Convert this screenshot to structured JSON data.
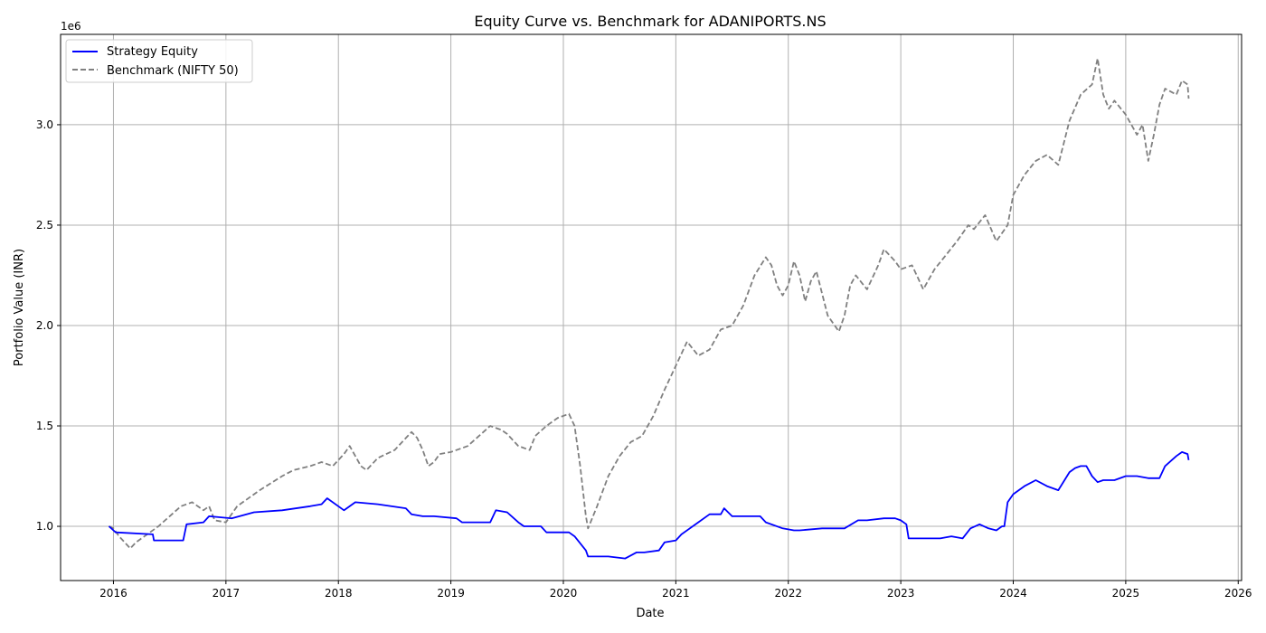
{
  "chart_data": {
    "type": "line",
    "title": "Equity Curve vs. Benchmark for ADANIPORTS.NS",
    "xlabel": "Date",
    "ylabel": "Portfolio Value (INR)",
    "y_offset_label": "1e6",
    "xlim": [
      2015.53,
      2026.03
    ],
    "ylim": [
      0.73,
      3.45
    ],
    "x_ticks": [
      2016,
      2017,
      2018,
      2019,
      2020,
      2021,
      2022,
      2023,
      2024,
      2025,
      2026
    ],
    "x_tick_labels": [
      "2016",
      "2017",
      "2018",
      "2019",
      "2020",
      "2021",
      "2022",
      "2023",
      "2024",
      "2025",
      "2026"
    ],
    "y_ticks": [
      1.0,
      1.5,
      2.0,
      2.5,
      3.0
    ],
    "y_tick_labels": [
      "1.0",
      "1.5",
      "2.0",
      "2.5",
      "3.0"
    ],
    "grid": true,
    "legend_position": "top-left",
    "series": [
      {
        "name": "Strategy Equity",
        "color": "#0000ff",
        "style": "solid",
        "x": [
          2015.96,
          2016.0,
          2016.02,
          2016.35,
          2016.36,
          2016.62,
          2016.65,
          2016.8,
          2016.85,
          2017.05,
          2017.25,
          2017.5,
          2017.75,
          2017.85,
          2017.9,
          2018.05,
          2018.15,
          2018.35,
          2018.6,
          2018.65,
          2018.75,
          2018.85,
          2019.05,
          2019.1,
          2019.35,
          2019.4,
          2019.5,
          2019.6,
          2019.65,
          2019.8,
          2019.85,
          2020.05,
          2020.1,
          2020.2,
          2020.22,
          2020.4,
          2020.55,
          2020.65,
          2020.72,
          2020.85,
          2020.9,
          2021.0,
          2021.05,
          2021.2,
          2021.3,
          2021.4,
          2021.43,
          2021.5,
          2021.75,
          2021.8,
          2021.95,
          2022.05,
          2022.1,
          2022.3,
          2022.5,
          2022.62,
          2022.7,
          2022.85,
          2022.95,
          2023.0,
          2023.05,
          2023.07,
          2023.35,
          2023.45,
          2023.55,
          2023.62,
          2023.7,
          2023.78,
          2023.85,
          2023.9,
          2023.92,
          2023.95,
          2024.0,
          2024.1,
          2024.2,
          2024.3,
          2024.4,
          2024.5,
          2024.55,
          2024.6,
          2024.65,
          2024.7,
          2024.75,
          2024.8,
          2024.9,
          2025.0,
          2025.1,
          2025.2,
          2025.3,
          2025.35,
          2025.45,
          2025.5,
          2025.55,
          2025.56
        ],
        "values": [
          1.0,
          0.98,
          0.97,
          0.96,
          0.93,
          0.93,
          1.01,
          1.02,
          1.05,
          1.04,
          1.07,
          1.08,
          1.1,
          1.11,
          1.14,
          1.08,
          1.12,
          1.11,
          1.09,
          1.06,
          1.05,
          1.05,
          1.04,
          1.02,
          1.02,
          1.08,
          1.07,
          1.02,
          1.0,
          1.0,
          0.97,
          0.97,
          0.95,
          0.88,
          0.85,
          0.85,
          0.84,
          0.87,
          0.87,
          0.88,
          0.92,
          0.93,
          0.96,
          1.02,
          1.06,
          1.06,
          1.09,
          1.05,
          1.05,
          1.02,
          0.99,
          0.98,
          0.98,
          0.99,
          0.99,
          1.03,
          1.03,
          1.04,
          1.04,
          1.03,
          1.01,
          0.94,
          0.94,
          0.95,
          0.94,
          0.99,
          1.01,
          0.99,
          0.98,
          1.0,
          1.0,
          1.12,
          1.16,
          1.2,
          1.23,
          1.2,
          1.18,
          1.27,
          1.29,
          1.3,
          1.3,
          1.25,
          1.22,
          1.23,
          1.23,
          1.25,
          1.25,
          1.24,
          1.24,
          1.3,
          1.35,
          1.37,
          1.36,
          1.33
        ]
      },
      {
        "name": "Benchmark (NIFTY 50)",
        "color": "#808080",
        "style": "dashed",
        "x": [
          2015.96,
          2016.0,
          2016.05,
          2016.1,
          2016.15,
          2016.2,
          2016.3,
          2016.4,
          2016.5,
          2016.6,
          2016.7,
          2016.8,
          2016.85,
          2016.9,
          2017.0,
          2017.1,
          2017.3,
          2017.5,
          2017.6,
          2017.75,
          2017.85,
          2017.95,
          2018.05,
          2018.1,
          2018.2,
          2018.25,
          2018.35,
          2018.5,
          2018.65,
          2018.7,
          2018.75,
          2018.8,
          2018.85,
          2018.9,
          2019.0,
          2019.15,
          2019.25,
          2019.35,
          2019.45,
          2019.5,
          2019.6,
          2019.7,
          2019.75,
          2019.85,
          2019.95,
          2020.05,
          2020.1,
          2020.15,
          2020.2,
          2020.22,
          2020.3,
          2020.4,
          2020.5,
          2020.6,
          2020.7,
          2020.8,
          2020.9,
          2021.0,
          2021.1,
          2021.2,
          2021.3,
          2021.4,
          2021.5,
          2021.6,
          2021.7,
          2021.8,
          2021.85,
          2021.9,
          2021.95,
          2022.0,
          2022.05,
          2022.1,
          2022.15,
          2022.2,
          2022.25,
          2022.35,
          2022.45,
          2022.5,
          2022.55,
          2022.6,
          2022.7,
          2022.8,
          2022.85,
          2022.95,
          2023.0,
          2023.1,
          2023.2,
          2023.3,
          2023.4,
          2023.5,
          2023.6,
          2023.65,
          2023.75,
          2023.85,
          2023.95,
          2024.0,
          2024.1,
          2024.2,
          2024.3,
          2024.4,
          2024.5,
          2024.6,
          2024.7,
          2024.75,
          2024.8,
          2024.85,
          2024.9,
          2025.0,
          2025.1,
          2025.15,
          2025.2,
          2025.25,
          2025.3,
          2025.35,
          2025.45,
          2025.5,
          2025.55,
          2025.56
        ],
        "values": [
          1.0,
          0.99,
          0.95,
          0.92,
          0.89,
          0.92,
          0.96,
          1.0,
          1.05,
          1.1,
          1.12,
          1.08,
          1.1,
          1.03,
          1.02,
          1.1,
          1.18,
          1.25,
          1.28,
          1.3,
          1.32,
          1.3,
          1.36,
          1.4,
          1.3,
          1.28,
          1.34,
          1.38,
          1.47,
          1.44,
          1.38,
          1.3,
          1.32,
          1.36,
          1.37,
          1.4,
          1.45,
          1.5,
          1.48,
          1.46,
          1.4,
          1.38,
          1.45,
          1.5,
          1.54,
          1.56,
          1.5,
          1.3,
          1.05,
          0.99,
          1.1,
          1.25,
          1.35,
          1.42,
          1.45,
          1.55,
          1.68,
          1.8,
          1.92,
          1.85,
          1.88,
          1.98,
          2.0,
          2.1,
          2.25,
          2.34,
          2.3,
          2.2,
          2.15,
          2.2,
          2.32,
          2.25,
          2.12,
          2.22,
          2.27,
          2.05,
          1.97,
          2.05,
          2.2,
          2.25,
          2.18,
          2.3,
          2.38,
          2.32,
          2.28,
          2.3,
          2.18,
          2.28,
          2.35,
          2.42,
          2.5,
          2.48,
          2.55,
          2.42,
          2.5,
          2.65,
          2.75,
          2.82,
          2.85,
          2.8,
          3.02,
          3.15,
          3.2,
          3.33,
          3.15,
          3.08,
          3.12,
          3.05,
          2.95,
          3.0,
          2.82,
          2.95,
          3.1,
          3.18,
          3.15,
          3.22,
          3.2,
          3.13
        ]
      }
    ]
  }
}
